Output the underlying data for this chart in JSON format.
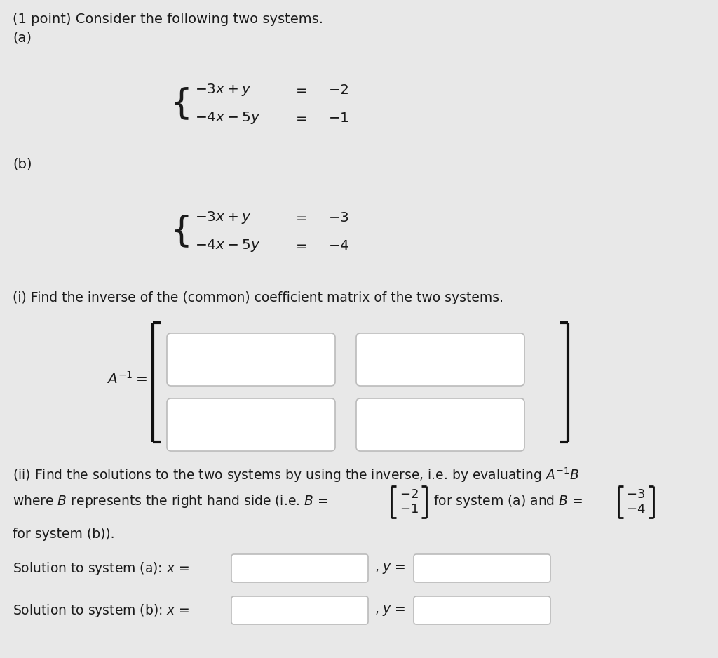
{
  "bg_color": "#e8e8e8",
  "text_color": "#1a1a1a",
  "input_box_color": "#ffffff",
  "input_box_edge": "#bbbbbb",
  "bracket_color": "#111111",
  "title": "(1 point) Consider the following two systems.",
  "label_a": "(a)",
  "label_b": "(b)",
  "part_i_text": "(i) Find the inverse of the (common) coefficient matrix of the two systems.",
  "part_ii_text": "(ii) Find the solutions to the two systems by using the inverse, i.e. by evaluating $A^{-1}B$",
  "where_b_text": "where $B$ represents the right hand side (i.e. $B$ =",
  "for_sys_a_text": "for system (a) and $B$ =",
  "for_sys_b_text": "for system (b)).",
  "sol_a_text": "Solution to system (a): $x$ =",
  "sol_b_text": "Solution to system (b): $x$ =",
  "comma_y": ", $y$ ="
}
